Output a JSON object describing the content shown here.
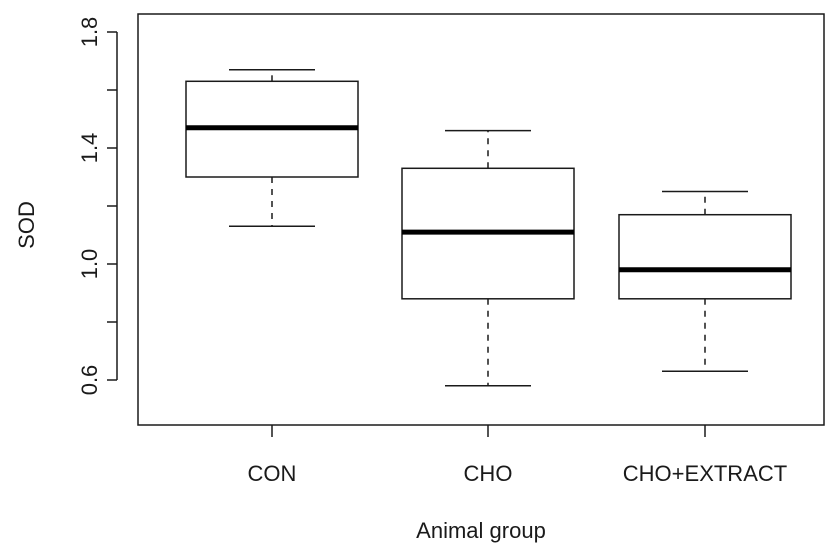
{
  "chart_data": {
    "type": "boxplot",
    "xlabel": "Animal group",
    "ylabel": "SOD",
    "ylim": [
      0.6,
      1.8
    ],
    "y_ticks": [
      "0.6",
      "1.0",
      "1.4",
      "1.8"
    ],
    "grid": false,
    "categories": [
      "CON",
      "CHO",
      "CHO+EXTRACT"
    ],
    "boxes": [
      {
        "category": "CON",
        "whisker_low": 1.13,
        "q1": 1.3,
        "median": 1.47,
        "q3": 1.63,
        "whisker_high": 1.67
      },
      {
        "category": "CHO",
        "whisker_low": 0.58,
        "q1": 0.88,
        "median": 1.11,
        "q3": 1.33,
        "whisker_high": 1.46
      },
      {
        "category": "CHO+EXTRACT",
        "whisker_low": 0.63,
        "q1": 0.88,
        "median": 0.98,
        "q3": 1.17,
        "whisker_high": 1.25
      }
    ],
    "colors": {
      "box_fill": "#ffffff",
      "stroke": "#1a1a1a",
      "median": "#000000"
    }
  }
}
